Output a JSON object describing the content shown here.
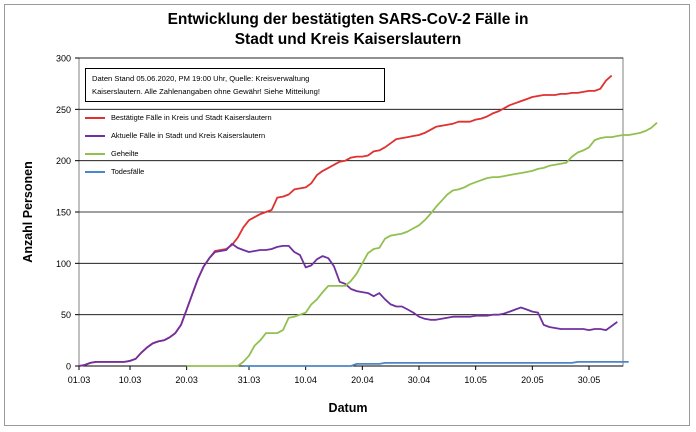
{
  "chart_data": {
    "type": "line",
    "title": [
      "Entwicklung der bestätigten SARS-CoV-2 Fälle in",
      "Stadt und Kreis Kaiserslautern"
    ],
    "xlabel": "Datum",
    "ylabel": "Anzahl Personen",
    "ylim": [
      0,
      300
    ],
    "yticks": [
      0,
      50,
      100,
      150,
      200,
      250,
      300
    ],
    "x_tick_labels": [
      "01.03",
      "10.03",
      "20.03",
      "31.03",
      "10.04",
      "20.04",
      "30.04",
      "10.05",
      "20.05",
      "30.05"
    ],
    "x_tick_index": [
      0,
      9,
      19,
      30,
      40,
      50,
      60,
      70,
      80,
      90
    ],
    "x_start": "01.03.2020",
    "x_end_index": 96,
    "grid": "horizontal",
    "legend_position": "upper-left",
    "annotation": [
      "Daten Stand 05.06.2020, PM 19:00 Uhr, Quelle: Kreisverwaltung",
      "Kaiserslautern. Alle Zahlenangaben ohne Gewähr! Siehe Mitteilung!"
    ],
    "series": [
      {
        "name": "Bestätigte Fälle in Kreis und Stadt Kaiserslautern",
        "color": "#e03030",
        "start_index": 0,
        "values": [
          0,
          1,
          3,
          4,
          4,
          4,
          4,
          4,
          4,
          5,
          7,
          13,
          18,
          22,
          24,
          25,
          28,
          32,
          40,
          55,
          70,
          85,
          97,
          105,
          112,
          113,
          114,
          118,
          125,
          135,
          142,
          145,
          148,
          150,
          152,
          164,
          165,
          167,
          172,
          173,
          174,
          178,
          186,
          190,
          193,
          196,
          199,
          200,
          203,
          204,
          204,
          205,
          209,
          210,
          213,
          217,
          221,
          222,
          223,
          224,
          225,
          227,
          230,
          233,
          234,
          235,
          236,
          238,
          238,
          238,
          240,
          241,
          243,
          246,
          248,
          251,
          254,
          256,
          258,
          260,
          262,
          263,
          264,
          264,
          264,
          265,
          265,
          266,
          266,
          267,
          268,
          268,
          270,
          278,
          283
        ]
      },
      {
        "name": "Aktuelle Fälle in Stadt und Kreis Kaiserslautern",
        "color": "#7030a0",
        "start_index": 0,
        "values": [
          0,
          1,
          3,
          4,
          4,
          4,
          4,
          4,
          4,
          5,
          7,
          13,
          18,
          22,
          24,
          25,
          28,
          32,
          40,
          55,
          70,
          85,
          97,
          105,
          111,
          112,
          113,
          119,
          115,
          113,
          111,
          112,
          113,
          113,
          114,
          116,
          117,
          117,
          111,
          108,
          96,
          98,
          104,
          107,
          105,
          97,
          82,
          80,
          75,
          73,
          72,
          71,
          68,
          71,
          65,
          60,
          58,
          58,
          55,
          52,
          48,
          46,
          45,
          45,
          46,
          47,
          48,
          48,
          48,
          48,
          49,
          49,
          49,
          50,
          50,
          51,
          53,
          55,
          57,
          55,
          53,
          52,
          40,
          38,
          37,
          36,
          36,
          36,
          36,
          36,
          35,
          36,
          36,
          35,
          39,
          43
        ]
      },
      {
        "name": "Geheilte",
        "color": "#92c050",
        "start_index": 19,
        "values": [
          0,
          0,
          0,
          0,
          0,
          0,
          0,
          0,
          0,
          0,
          4,
          10,
          20,
          25,
          32,
          32,
          32,
          35,
          47,
          48,
          50,
          52,
          60,
          65,
          72,
          78,
          78,
          78,
          78,
          83,
          90,
          100,
          110,
          114,
          115,
          124,
          127,
          128,
          129,
          131,
          134,
          137,
          142,
          148,
          155,
          161,
          167,
          171,
          172,
          174,
          177,
          179,
          181,
          183,
          184,
          184,
          185,
          186,
          187,
          188,
          189,
          190,
          192,
          193,
          195,
          196,
          197,
          198,
          204,
          208,
          210,
          213,
          220,
          222,
          223,
          223,
          224,
          225,
          225,
          226,
          227,
          229,
          232,
          237
        ]
      },
      {
        "name": "Todesfälle",
        "color": "#4a86c8",
        "start_index": 29,
        "values": [
          0,
          0,
          0,
          0,
          0,
          0,
          0,
          0,
          0,
          0,
          0,
          0,
          0,
          0,
          0,
          0,
          0,
          0,
          0,
          0,
          2,
          2,
          2,
          2,
          2,
          3,
          3,
          3,
          3,
          3,
          3,
          3,
          3,
          3,
          3,
          3,
          3,
          3,
          3,
          3,
          3,
          3,
          3,
          3,
          3,
          3,
          3,
          3,
          3,
          3,
          3,
          3,
          3,
          3,
          3,
          3,
          3,
          3,
          3,
          4,
          4,
          4,
          4,
          4,
          4,
          4,
          4,
          4,
          4
        ]
      }
    ]
  }
}
